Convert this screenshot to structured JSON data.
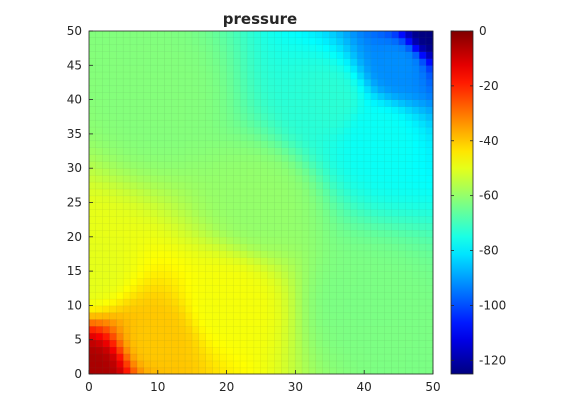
{
  "chart_data": {
    "type": "heatmap",
    "title": "pressure",
    "xlabel": "",
    "ylabel": "",
    "xlim": [
      0,
      50
    ],
    "ylim": [
      0,
      50
    ],
    "x_ticks": [
      "0",
      "10",
      "20",
      "30",
      "40",
      "50"
    ],
    "y_ticks": [
      "0",
      "5",
      "10",
      "15",
      "20",
      "25",
      "30",
      "35",
      "40",
      "45",
      "50"
    ],
    "colorbar": {
      "clim": [
        -125,
        0
      ],
      "ticks": [
        "0",
        "-20",
        "-40",
        "-60",
        "-80",
        "-100",
        "-120"
      ],
      "colormap": "jet"
    },
    "grid": "distorted 50x50 cell mesh with visible edges",
    "field_features": [
      {
        "x": 0,
        "y": 0,
        "value": -5
      },
      {
        "x": 10,
        "y": 5,
        "value": -40
      },
      {
        "x": 20,
        "y": 10,
        "value": -48
      },
      {
        "x": 0,
        "y": 15,
        "value": -50
      },
      {
        "x": 25,
        "y": 25,
        "value": -60
      },
      {
        "x": 10,
        "y": 40,
        "value": -62
      },
      {
        "x": 40,
        "y": 10,
        "value": -63
      },
      {
        "x": 50,
        "y": 0,
        "value": -63
      },
      {
        "x": 35,
        "y": 40,
        "value": -73
      },
      {
        "x": 42,
        "y": 35,
        "value": -77
      },
      {
        "x": 45,
        "y": 45,
        "value": -92
      },
      {
        "x": 50,
        "y": 50,
        "value": -125
      }
    ]
  }
}
